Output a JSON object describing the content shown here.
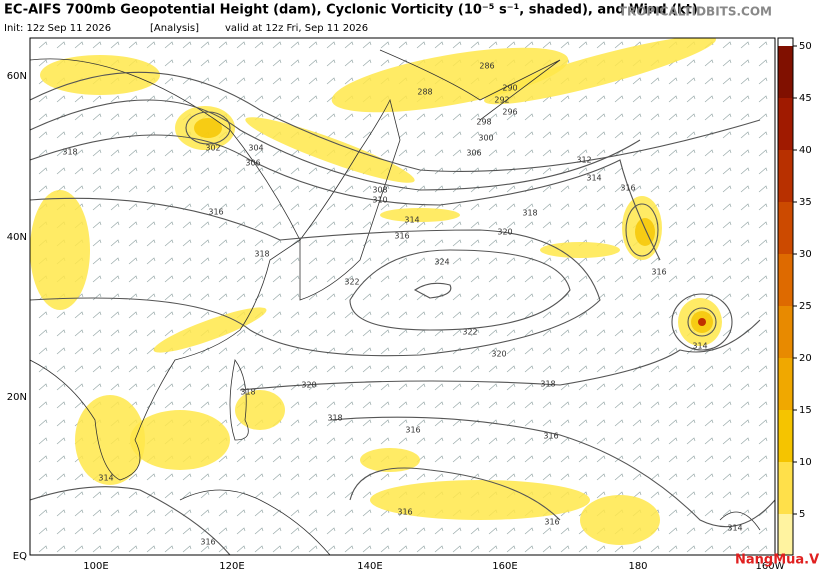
{
  "header": {
    "title": "EC-AIFS 700mb Geopotential Height (dam), Cyclonic Vorticity (10⁻⁵ s⁻¹, shaded), and Wind (kt)",
    "init": "Init: 12z Sep 11 2026",
    "analysis": "[Analysis]",
    "valid": "valid at 12z Fri, Sep 11 2026",
    "source": "TROPICALTIDBITS.COM"
  },
  "map": {
    "lat_labels": [
      "60N",
      "40N",
      "20N",
      "EQ"
    ],
    "lon_labels": [
      "100E",
      "120E",
      "140E",
      "160E",
      "180",
      "160W"
    ],
    "contour_labels": [
      286,
      288,
      290,
      292,
      296,
      298,
      300,
      302,
      304,
      306,
      318,
      308,
      310,
      312,
      314,
      316,
      316,
      318,
      320,
      324,
      322,
      322,
      320,
      318,
      318,
      320,
      318,
      316,
      316,
      316,
      316,
      314,
      314,
      314,
      316,
      316,
      318,
      314,
      306,
      316
    ]
  },
  "colorbar": {
    "lim": [
      0,
      50
    ],
    "ticks": [
      5,
      10,
      15,
      20,
      25,
      30,
      35,
      40,
      45,
      50
    ],
    "colors": [
      "#fff3a0",
      "#ffe04a",
      "#f5c400",
      "#f0a800",
      "#e88a00",
      "#de6a00",
      "#cc4a00",
      "#b83000",
      "#a01a00",
      "#801000"
    ]
  },
  "watermark": "NangMua.VN"
}
